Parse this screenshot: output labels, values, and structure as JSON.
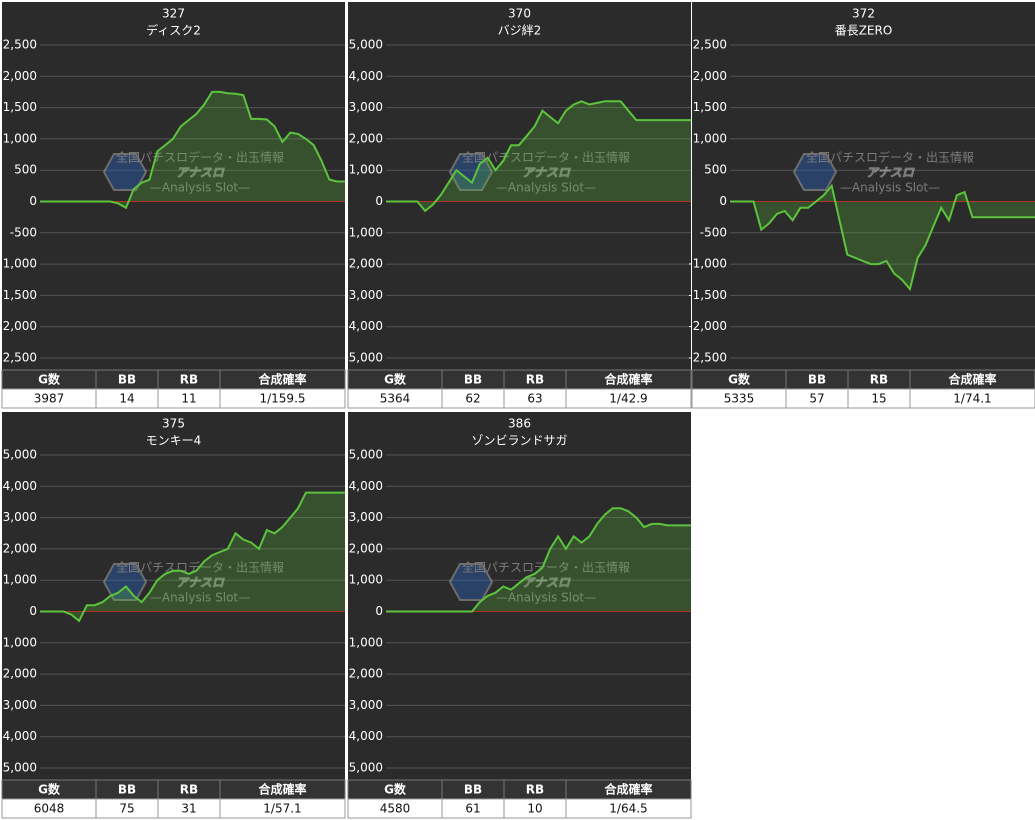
{
  "watermark": {
    "title": "アナスロ",
    "tagline": "全国パチスロデータ・出玉情報",
    "subtitle": "—Analysis Slot—"
  },
  "chart_data": [
    {
      "type": "line",
      "title": "327",
      "subtitle": "ディスク2",
      "color": "#5cc43c",
      "grid": true,
      "ylim": [
        -2500,
        2500
      ],
      "yticks": [
        {
          "value": 2500,
          "label": "2,500"
        },
        {
          "value": 2000,
          "label": "2,000"
        },
        {
          "value": 1500,
          "label": "1,500"
        },
        {
          "value": 1000,
          "label": "1,000"
        },
        500,
        0,
        -500,
        {
          "value": -1000,
          "label": "-1,000"
        },
        {
          "value": -1500,
          "label": "-1,500"
        },
        {
          "value": -2000,
          "label": "-2,000"
        },
        {
          "value": -2500,
          "label": "-2,500"
        }
      ],
      "values": [
        0,
        0,
        0,
        0,
        0,
        0,
        0,
        0,
        0,
        0,
        -30,
        -100,
        200,
        300,
        350,
        800,
        900,
        1000,
        1200,
        1300,
        1400,
        1550,
        1750,
        1750,
        1730,
        1720,
        1700,
        1320,
        1320,
        1310,
        1200,
        950,
        1100,
        1080,
        1000,
        900,
        650,
        350,
        320,
        320
      ],
      "table": {
        "columns": [
          "G数",
          "BB",
          "RB",
          "合成確率"
        ],
        "row": [
          3987,
          14,
          11,
          "1/159.5"
        ]
      }
    },
    {
      "type": "line",
      "title": "370",
      "subtitle": "バジ絆2",
      "color": "#5cc43c",
      "grid": true,
      "ylim": [
        -5000,
        5000
      ],
      "yticks": [
        {
          "value": 5000,
          "label": "5,000"
        },
        {
          "value": 4000,
          "label": "4,000"
        },
        {
          "value": 3000,
          "label": "3,000"
        },
        {
          "value": 2000,
          "label": "2,000"
        },
        {
          "value": 1000,
          "label": "1,000"
        },
        0,
        {
          "value": -1000,
          "label": "-1,000"
        },
        {
          "value": -2000,
          "label": "-2,000"
        },
        {
          "value": -3000,
          "label": "-3,000"
        },
        {
          "value": -4000,
          "label": "-4,000"
        },
        {
          "value": -5000,
          "label": "-5,000"
        }
      ],
      "values": [
        0,
        0,
        0,
        0,
        0,
        -300,
        -100,
        200,
        600,
        1000,
        800,
        600,
        1200,
        1400,
        1000,
        1300,
        1800,
        1800,
        2100,
        2400,
        2900,
        2700,
        2500,
        2900,
        3100,
        3200,
        3100,
        3150,
        3200,
        3200,
        3200,
        2900,
        2600,
        2600,
        2600,
        2600,
        2600,
        2600,
        2600,
        2600
      ],
      "table": {
        "columns": [
          "G数",
          "BB",
          "RB",
          "合成確率"
        ],
        "row": [
          5364,
          62,
          63,
          "1/42.9"
        ]
      }
    },
    {
      "type": "line",
      "title": "372",
      "subtitle": "番長ZERO",
      "color": "#5cc43c",
      "grid": true,
      "ylim": [
        -2500,
        2500
      ],
      "yticks": [
        {
          "value": 2500,
          "label": "2,500"
        },
        {
          "value": 2000,
          "label": "2,000"
        },
        {
          "value": 1500,
          "label": "1,500"
        },
        {
          "value": 1000,
          "label": "1,000"
        },
        500,
        0,
        -500,
        {
          "value": -1000,
          "label": "-1,000"
        },
        {
          "value": -1500,
          "label": "-1,500"
        },
        {
          "value": -2000,
          "label": "-2,000"
        },
        {
          "value": -2500,
          "label": "-2,500"
        }
      ],
      "values": [
        0,
        0,
        0,
        0,
        -450,
        -350,
        -200,
        -150,
        -300,
        -100,
        -100,
        0,
        100,
        250,
        -300,
        -850,
        -900,
        -950,
        -1000,
        -1000,
        -950,
        -1150,
        -1250,
        -1400,
        -900,
        -700,
        -400,
        -100,
        -300,
        100,
        150,
        -250,
        -250,
        -250,
        -250,
        -250,
        -250,
        -250,
        -250,
        -250
      ],
      "table": {
        "columns": [
          "G数",
          "BB",
          "RB",
          "合成確率"
        ],
        "row": [
          5335,
          57,
          15,
          "1/74.1"
        ]
      }
    },
    {
      "type": "line",
      "title": "375",
      "subtitle": "モンキー4",
      "color": "#5cc43c",
      "grid": true,
      "ylim": [
        -5000,
        5000
      ],
      "yticks": [
        {
          "value": 5000,
          "label": "5,000"
        },
        {
          "value": 4000,
          "label": "4,000"
        },
        {
          "value": 3000,
          "label": "3,000"
        },
        {
          "value": 2000,
          "label": "2,000"
        },
        {
          "value": 1000,
          "label": "1,000"
        },
        0,
        {
          "value": -1000,
          "label": "-1,000"
        },
        {
          "value": -2000,
          "label": "-2,000"
        },
        {
          "value": -3000,
          "label": "-3,000"
        },
        {
          "value": -4000,
          "label": "-4,000"
        },
        {
          "value": -5000,
          "label": "-5,000"
        }
      ],
      "values": [
        0,
        0,
        0,
        0,
        -100,
        -300,
        200,
        200,
        300,
        500,
        600,
        800,
        500,
        300,
        600,
        1000,
        1200,
        1300,
        1300,
        1200,
        1300,
        1600,
        1800,
        1900,
        2000,
        2500,
        2300,
        2200,
        2000,
        2600,
        2500,
        2700,
        3000,
        3300,
        3800,
        3800,
        3800,
        3800,
        3800,
        3800
      ],
      "table": {
        "columns": [
          "G数",
          "BB",
          "RB",
          "合成確率"
        ],
        "row": [
          6048,
          75,
          31,
          "1/57.1"
        ]
      }
    },
    {
      "type": "line",
      "title": "386",
      "subtitle": "ゾンビランドサガ",
      "color": "#5cc43c",
      "grid": true,
      "ylim": [
        -5000,
        5000
      ],
      "yticks": [
        {
          "value": 5000,
          "label": "5,000"
        },
        {
          "value": 4000,
          "label": "4,000"
        },
        {
          "value": 3000,
          "label": "3,000"
        },
        {
          "value": 2000,
          "label": "2,000"
        },
        {
          "value": 1000,
          "label": "1,000"
        },
        0,
        {
          "value": -1000,
          "label": "-1,000"
        },
        {
          "value": -2000,
          "label": "-2,000"
        },
        {
          "value": -3000,
          "label": "-3,000"
        },
        {
          "value": -4000,
          "label": "-4,000"
        },
        {
          "value": -5000,
          "label": "-5,000"
        }
      ],
      "values": [
        0,
        0,
        0,
        0,
        0,
        0,
        0,
        0,
        0,
        0,
        0,
        0,
        300,
        500,
        600,
        800,
        700,
        900,
        1100,
        1200,
        1400,
        2000,
        2400,
        2000,
        2400,
        2200,
        2400,
        2800,
        3100,
        3300,
        3300,
        3200,
        3000,
        2700,
        2800,
        2800,
        2750,
        2750,
        2750,
        2750
      ],
      "table": {
        "columns": [
          "G数",
          "BB",
          "RB",
          "合成確率"
        ],
        "row": [
          4580,
          61,
          10,
          "1/64.5"
        ]
      }
    }
  ]
}
